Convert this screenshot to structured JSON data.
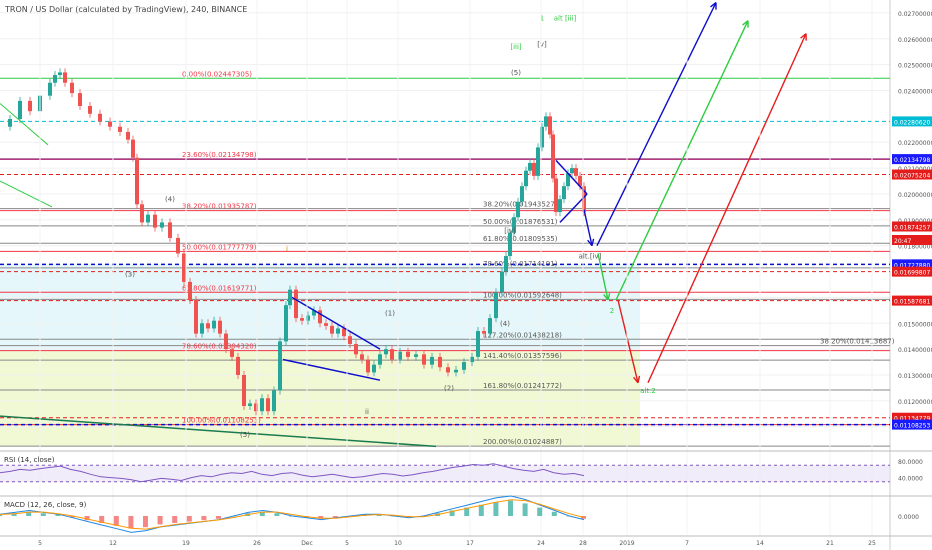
{
  "header": {
    "symbol": "TRON / US Dollar (calculated by TradingView), 240, BINANCE"
  },
  "rsi_label": "RSI (14, close)",
  "macd_label": "MACD (12, 26, close, 9)",
  "colors": {
    "up": "#26a69a",
    "down": "#ef5350",
    "fib": "#f23645",
    "blue": "#0d0dcc",
    "green": "#2ecc40",
    "red": "#e51c1c",
    "cyan": "#00bcd4",
    "purple": "#7e57c2"
  },
  "chart_data": [
    {
      "type": "candlestick",
      "title": "",
      "xlabel": "",
      "ylabel": "",
      "x_ticks": [
        "5",
        "12",
        "19",
        "26",
        "Dec",
        "5",
        "10",
        "17",
        "24",
        "28",
        "2019",
        "7",
        "14",
        "21",
        "25"
      ],
      "y_ticks": [
        "0.02700000",
        "0.02600000",
        "0.02500000",
        "0.02400000",
        "0.02200000",
        "0.02100000",
        "0.02000000",
        "0.01900000",
        "0.01800000",
        "0.01600000",
        "0.01500000",
        "0.01400000",
        "0.01300000",
        "0.01200000",
        "0.01100000"
      ],
      "ylim": [
        0.0101,
        0.0275
      ],
      "price_points": [
        [
          0,
          0.0226
        ],
        [
          10,
          0.0229
        ],
        [
          20,
          0.0236
        ],
        [
          30,
          0.0232
        ],
        [
          40,
          0.0238
        ],
        [
          50,
          0.0243
        ],
        [
          55,
          0.0246
        ],
        [
          60,
          0.0247
        ],
        [
          65,
          0.0243
        ],
        [
          72,
          0.0239
        ],
        [
          80,
          0.0234
        ],
        [
          90,
          0.0231
        ],
        [
          100,
          0.0228
        ],
        [
          110,
          0.0226
        ],
        [
          120,
          0.0224
        ],
        [
          128,
          0.0221
        ],
        [
          133,
          0.0214
        ],
        [
          137,
          0.0196
        ],
        [
          142,
          0.0189
        ],
        [
          148,
          0.0192
        ],
        [
          155,
          0.0187
        ],
        [
          162,
          0.0189
        ],
        [
          170,
          0.0183
        ],
        [
          178,
          0.0177
        ],
        [
          184,
          0.0166
        ],
        [
          190,
          0.0159
        ],
        [
          196,
          0.0146
        ],
        [
          202,
          0.015
        ],
        [
          208,
          0.0148
        ],
        [
          214,
          0.0151
        ],
        [
          220,
          0.0146
        ],
        [
          226,
          0.014
        ],
        [
          232,
          0.0137
        ],
        [
          238,
          0.013
        ],
        [
          244,
          0.0118
        ],
        [
          250,
          0.0119
        ],
        [
          256,
          0.0116
        ],
        [
          262,
          0.0121
        ],
        [
          268,
          0.0116
        ],
        [
          274,
          0.0124
        ],
        [
          280,
          0.0143
        ],
        [
          286,
          0.0157
        ],
        [
          290,
          0.0163
        ],
        [
          296,
          0.0152
        ],
        [
          302,
          0.0151
        ],
        [
          308,
          0.0153
        ],
        [
          314,
          0.0155
        ],
        [
          320,
          0.015
        ],
        [
          326,
          0.0149
        ],
        [
          332,
          0.0146
        ],
        [
          338,
          0.0148
        ],
        [
          344,
          0.0145
        ],
        [
          350,
          0.0142
        ],
        [
          356,
          0.0138
        ],
        [
          362,
          0.0136
        ],
        [
          368,
          0.0131
        ],
        [
          374,
          0.0134
        ],
        [
          380,
          0.0138
        ],
        [
          386,
          0.014
        ],
        [
          392,
          0.0136
        ],
        [
          400,
          0.0139
        ],
        [
          408,
          0.0137
        ],
        [
          416,
          0.0138
        ],
        [
          424,
          0.0134
        ],
        [
          432,
          0.0137
        ],
        [
          440,
          0.0133
        ],
        [
          448,
          0.0131
        ],
        [
          456,
          0.0132
        ],
        [
          464,
          0.0135
        ],
        [
          472,
          0.0137
        ],
        [
          478,
          0.0147
        ],
        [
          484,
          0.0146
        ],
        [
          490,
          0.0152
        ],
        [
          496,
          0.0162
        ],
        [
          502,
          0.017
        ],
        [
          506,
          0.0176
        ],
        [
          510,
          0.0185
        ],
        [
          514,
          0.0191
        ],
        [
          518,
          0.0197
        ],
        [
          522,
          0.0203
        ],
        [
          526,
          0.0209
        ],
        [
          530,
          0.0212
        ],
        [
          534,
          0.0207
        ],
        [
          538,
          0.0218
        ],
        [
          542,
          0.0226
        ],
        [
          546,
          0.023
        ],
        [
          550,
          0.0223
        ],
        [
          553,
          0.0206
        ],
        [
          556,
          0.0193
        ],
        [
          560,
          0.0198
        ],
        [
          564,
          0.0203
        ],
        [
          568,
          0.0208
        ],
        [
          572,
          0.021
        ],
        [
          576,
          0.0207
        ],
        [
          580,
          0.0203
        ],
        [
          584,
          0.0193
        ]
      ],
      "horizontal_levels": [
        {
          "price": 0.02447305,
          "color": "green",
          "label": "0.00%(0.02447305)"
        },
        {
          "price": 0.02134798,
          "color": "blue"
        },
        {
          "price": 0.02134798,
          "color": "fib",
          "label": "23.60%(0.02134798)"
        },
        {
          "price": 0.02075204,
          "color": "red",
          "dash": true
        },
        {
          "price": 0.01935787,
          "color": "fib",
          "label": "38.20%(0.01935787)"
        },
        {
          "price": 0.01943527,
          "color": "gray",
          "label": "38.20%(0.01943527)"
        },
        {
          "price": 0.01876531,
          "color": "gray",
          "label": "50.00%(0.01876531)"
        },
        {
          "price": 0.01809535,
          "color": "gray",
          "label": "61.80%(0.01809535)"
        },
        {
          "price": 0.01777779,
          "color": "fib",
          "label": "50.00%(0.01777779)"
        },
        {
          "price": 0.0172788,
          "color": "blue",
          "dash": true
        },
        {
          "price": 0.01714191,
          "color": "gray",
          "label": "78.60%(0.01714191)"
        },
        {
          "price": 0.01699807,
          "color": "red",
          "dash": true
        },
        {
          "price": 0.01619771,
          "color": "fib",
          "label": "61.80%(0.01619771)"
        },
        {
          "price": 0.01592648,
          "color": "gray",
          "label": "100.00%(0.01592648)"
        },
        {
          "price": 0.01587681,
          "color": "red",
          "dash": true
        },
        {
          "price": 0.01438218,
          "color": "gray",
          "label": "127.20%(0.01438218)"
        },
        {
          "price": 0.01413687,
          "color": "gray",
          "label": "38.20%(0.01413687)"
        },
        {
          "price": 0.0139432,
          "color": "fib",
          "label": "78.60%(0.01394320)"
        },
        {
          "price": 0.01357596,
          "color": "gray",
          "label": "141.40%(0.01357596)"
        },
        {
          "price": 0.01241772,
          "color": "gray",
          "label": "161.80%(0.01241772)"
        },
        {
          "price": 0.01134779,
          "color": "red",
          "dash": true
        },
        {
          "price": 0.01108253,
          "color": "fib",
          "label": "100.00%(0.01108253)"
        },
        {
          "price": 0.01108253,
          "color": "blue",
          "dash": true
        },
        {
          "price": 0.01024887,
          "color": "gray",
          "label": "200.00%(0.01024887)"
        },
        {
          "price": 0.0228062,
          "color": "cyan",
          "dash": true
        }
      ],
      "axis_badges": [
        {
          "price": 0.0228062,
          "text": "0.02280620",
          "bg": "#00bcd4"
        },
        {
          "price": 0.02134798,
          "text": "0.02134798",
          "bg": "#1a1aff"
        },
        {
          "price": 0.02075204,
          "text": "0.02075204",
          "bg": "#e51c1c"
        },
        {
          "price": 0.01874257,
          "text": "0.01874257",
          "bg": "#e51c1c"
        },
        {
          "price": 0.01822,
          "text": "20:47",
          "bg": "#e51c1c"
        },
        {
          "price": 0.0172788,
          "text": "0.01727880",
          "bg": "#1a1aff"
        },
        {
          "price": 0.01699807,
          "text": "0.01699807",
          "bg": "#e51c1c"
        },
        {
          "price": 0.01587681,
          "text": "0.01587681",
          "bg": "#e51c1c"
        },
        {
          "price": 0.01134779,
          "text": "0.01134779",
          "bg": "#e51c1c"
        },
        {
          "price": 0.01108253,
          "text": "0.01108253",
          "bg": "#1a1aff"
        }
      ],
      "wave_labels": [
        {
          "x": 170,
          "price": 0.0197,
          "text": "(4)",
          "color": "#555"
        },
        {
          "x": 130,
          "price": 0.0168,
          "text": "(3)",
          "color": "#555"
        },
        {
          "x": 245,
          "price": 0.0106,
          "text": "(5)",
          "color": "#555"
        },
        {
          "x": 287,
          "price": 0.0178,
          "text": "i",
          "color": "#c98a00"
        },
        {
          "x": 390,
          "price": 0.0153,
          "text": "(1)",
          "color": "#555"
        },
        {
          "x": 367,
          "price": 0.0115,
          "text": "ii",
          "color": "#555"
        },
        {
          "x": 449,
          "price": 0.0124,
          "text": "(2)",
          "color": "#555"
        },
        {
          "x": 505,
          "price": 0.0149,
          "text": "(4)",
          "color": "#555"
        },
        {
          "x": 516,
          "price": 0.0246,
          "text": "(5)",
          "color": "#555"
        },
        {
          "x": 516,
          "price": 0.0256,
          "text": "[iii]",
          "color": "#2ecc40"
        },
        {
          "x": 542,
          "price": 0.0267,
          "text": "1",
          "color": "#2ecc40"
        },
        {
          "x": 542,
          "price": 0.0257,
          "text": "[v]",
          "color": "#555"
        },
        {
          "x": 565,
          "price": 0.0267,
          "text": "alt [iii]",
          "color": "#2ecc40"
        },
        {
          "x": 510,
          "price": 0.0185,
          "text": "[iv]",
          "color": "#555"
        },
        {
          "x": 590,
          "price": 0.0175,
          "text": "alt.[iv]",
          "color": "#555"
        },
        {
          "x": 612,
          "price": 0.0154,
          "text": "2",
          "color": "#2ecc40"
        },
        {
          "x": 648,
          "price": 0.0123,
          "text": "alt.2",
          "color": "#2ecc40"
        }
      ],
      "rsi": [
        52,
        55,
        60,
        58,
        62,
        65,
        68,
        60,
        55,
        48,
        42,
        40,
        38,
        35,
        30,
        34,
        38,
        36,
        33,
        40,
        45,
        42,
        48,
        52,
        50,
        55,
        48,
        45,
        50,
        52,
        46,
        42,
        45,
        48,
        44,
        40,
        42,
        46,
        50,
        48,
        44,
        47,
        52,
        55,
        60,
        65,
        68,
        72,
        70,
        74,
        68,
        62,
        58,
        55,
        60,
        52,
        48,
        50,
        45
      ],
      "rsi_ticks": [
        "80.0000",
        "40.0000"
      ],
      "macd": [
        0.0001,
        0.0002,
        0.0003,
        0.0002,
        0.0001,
        -0.0001,
        -0.0003,
        -0.0005,
        -0.0007,
        -0.0009,
        -0.0008,
        -0.0006,
        -0.0005,
        -0.0004,
        -0.0003,
        -0.0002,
        0.0,
        0.0002,
        0.0003,
        0.0002,
        0.0,
        -0.0001,
        -0.0002,
        -0.0001,
        0.0,
        0.0001,
        0.0001,
        0.0,
        -0.0001,
        0.0,
        0.0002,
        0.0004,
        0.0006,
        0.0008,
        0.001,
        0.0011,
        0.0009,
        0.0006,
        0.0003,
        0.0,
        -0.0002
      ],
      "macd_tick": "0.0000"
    }
  ]
}
